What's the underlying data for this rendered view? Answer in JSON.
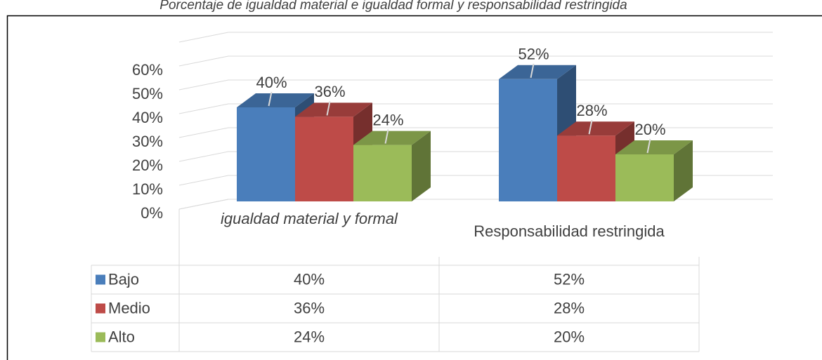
{
  "chart_data": {
    "type": "bar3d",
    "title": "Porcentaje de igualdad material e igualdad formal y responsabilidad restringida",
    "categories": [
      "igualdad material y formal",
      "Responsabilidad restringida"
    ],
    "series": [
      {
        "name": "Bajo",
        "color": "#4a7ebb",
        "values": [
          40,
          52
        ],
        "value_labels": [
          "40%",
          "52%"
        ]
      },
      {
        "name": "Medio",
        "color": "#be4b48",
        "values": [
          36,
          28
        ],
        "value_labels": [
          "36%",
          "28%"
        ]
      },
      {
        "name": "Alto",
        "color": "#9bbb59",
        "values": [
          24,
          20
        ],
        "value_labels": [
          "24%",
          "20%"
        ]
      }
    ],
    "ylim": [
      0,
      70
    ],
    "yticks": [
      {
        "value": 0,
        "label": "0%"
      },
      {
        "value": 10,
        "label": "10%"
      },
      {
        "value": 20,
        "label": "20%"
      },
      {
        "value": 30,
        "label": "30%"
      },
      {
        "value": 40,
        "label": "40%"
      },
      {
        "value": 50,
        "label": "50%"
      },
      {
        "value": 60,
        "label": "60%"
      }
    ],
    "grid": true,
    "data_table": true
  }
}
